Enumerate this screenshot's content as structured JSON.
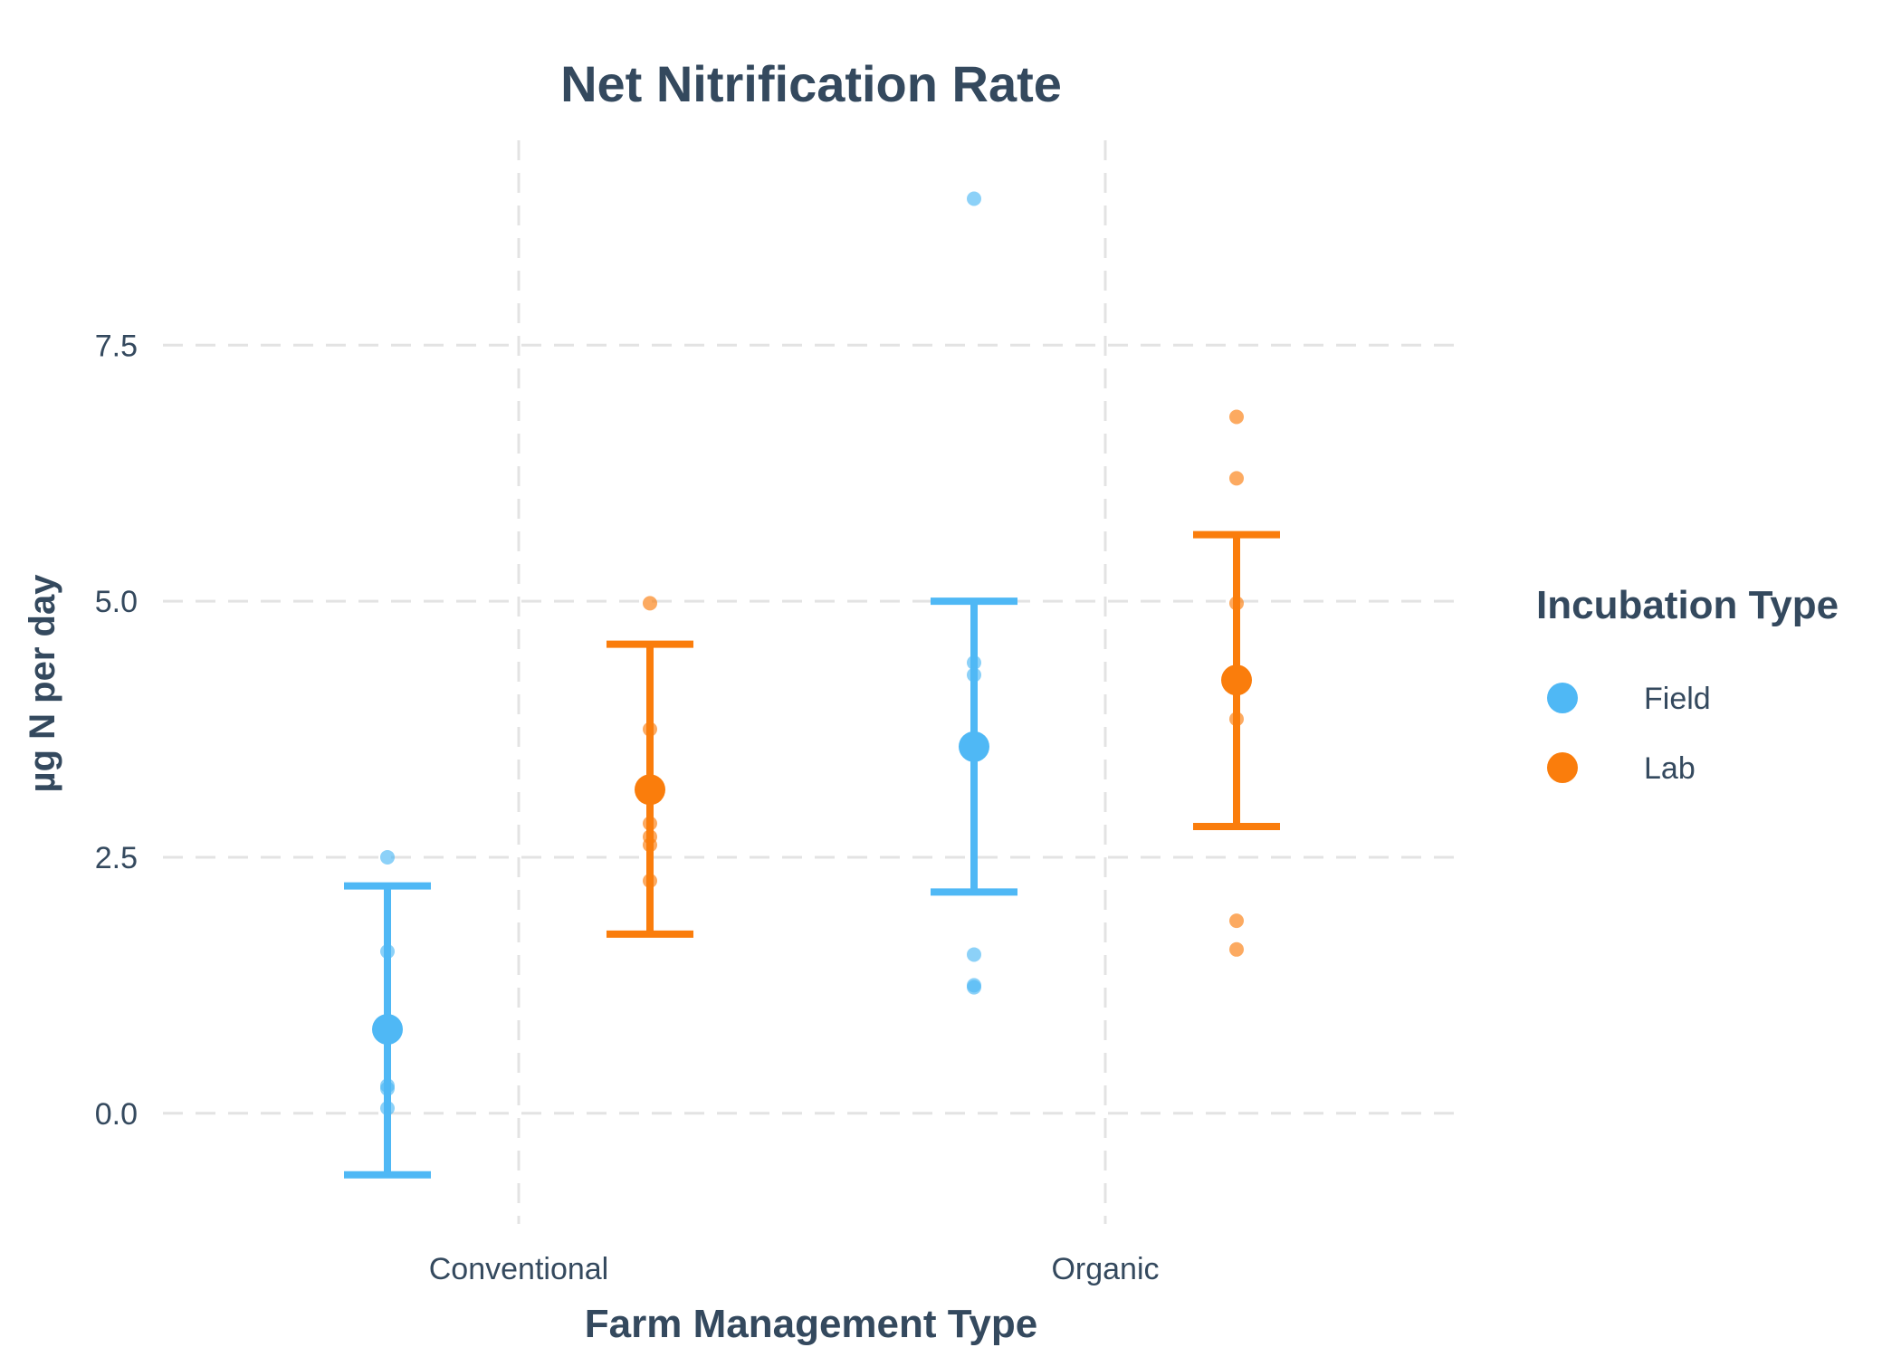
{
  "chart_data": {
    "type": "scatter",
    "title": "Net Nitrification Rate",
    "xlabel": "Farm Management Type",
    "ylabel": "µg N per day",
    "categories": [
      "Conventional",
      "Organic"
    ],
    "ylim": [
      -1.08,
      9.5
    ],
    "yticks": [
      0.0,
      2.5,
      5.0,
      7.5
    ],
    "ytick_labels": [
      "0.0",
      "2.5",
      "5.0",
      "7.5"
    ],
    "grid": true,
    "legend": {
      "title": "Incubation Type",
      "position": "right"
    },
    "series": [
      {
        "name": "Field",
        "color": "#4fb8f5",
        "groups": [
          {
            "category": "Conventional",
            "mean": 0.82,
            "lower": -0.6,
            "upper": 2.22,
            "points": [
              2.5,
              1.58,
              0.27,
              0.24,
              0.05
            ]
          },
          {
            "category": "Organic",
            "mean": 3.58,
            "lower": 2.16,
            "upper": 5.0,
            "points": [
              8.93,
              4.4,
              4.28,
              1.55,
              1.25,
              1.23
            ]
          }
        ]
      },
      {
        "name": "Lab",
        "color": "#fa7d0c",
        "groups": [
          {
            "category": "Conventional",
            "mean": 3.16,
            "lower": 1.75,
            "upper": 4.58,
            "points": [
              4.98,
              3.75,
              2.83,
              2.7,
              2.62,
              2.27
            ]
          },
          {
            "category": "Organic",
            "mean": 4.23,
            "lower": 2.8,
            "upper": 5.65,
            "points": [
              6.8,
              6.2,
              4.98,
              3.85,
              1.88,
              1.6
            ]
          }
        ]
      }
    ]
  }
}
